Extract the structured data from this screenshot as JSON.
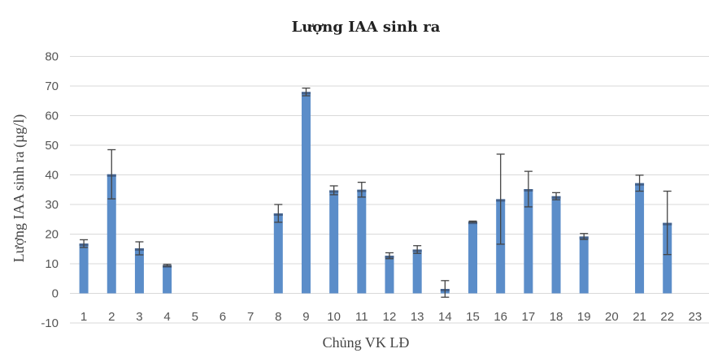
{
  "chart_data": {
    "type": "bar",
    "title": "Lượng IAA sinh ra",
    "xlabel": "Chủng VK LĐ",
    "ylabel": "Lượng IAA  sinh ra (µg/l)",
    "categories": [
      "1",
      "2",
      "3",
      "4",
      "5",
      "6",
      "7",
      "8",
      "9",
      "10",
      "11",
      "12",
      "13",
      "14",
      "15",
      "16",
      "17",
      "18",
      "19",
      "20",
      "21",
      "22",
      "23"
    ],
    "values": [
      16.8,
      40.2,
      15.2,
      9.5,
      null,
      null,
      null,
      27,
      68,
      34.8,
      35,
      12.7,
      14.8,
      1.5,
      24.2,
      31.8,
      35.2,
      32.8,
      19.2,
      null,
      37.2,
      23.8,
      null
    ],
    "errors": [
      1.3,
      8.3,
      2.2,
      0.3,
      null,
      null,
      null,
      3,
      1.3,
      1.5,
      2.5,
      1,
      1.3,
      2.8,
      0.2,
      15.2,
      6,
      1.2,
      1,
      null,
      2.7,
      10.7,
      null
    ],
    "ylim": [
      -10,
      80
    ],
    "yticks": [
      -10,
      0,
      10,
      20,
      30,
      40,
      50,
      60,
      70,
      80
    ],
    "grid": true,
    "legend": "none",
    "colors": {
      "bar": "#5b8dc9",
      "bar_top": "#44618a",
      "error_bar": "#444444",
      "grid": "#d9d9d9"
    }
  }
}
